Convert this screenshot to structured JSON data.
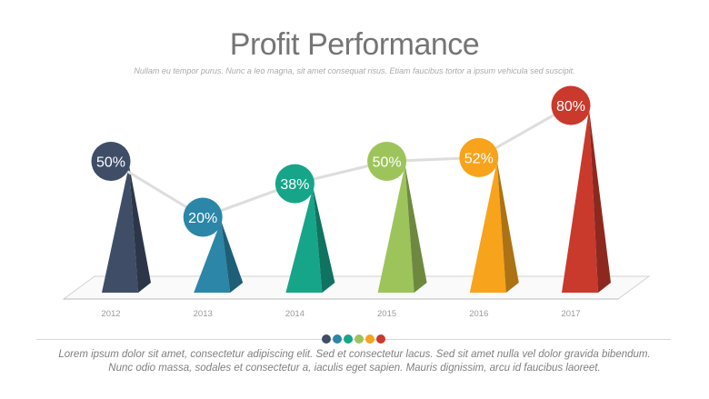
{
  "header": {
    "title": "Profit Performance",
    "subtitle": "Nullam eu tempor purus. Nunc a leo magna, sit amet consequat risus. Etiam faucibus tortor a ipsum vehicula sed suscipit."
  },
  "chart_data": {
    "type": "line",
    "title": "Profit Performance",
    "categories": [
      "2012",
      "2013",
      "2014",
      "2015",
      "2016",
      "2017"
    ],
    "values": [
      50,
      20,
      38,
      50,
      52,
      80
    ],
    "data_labels": [
      "50%",
      "20%",
      "38%",
      "50%",
      "52%",
      "80%"
    ],
    "colors": [
      "#3f4d67",
      "#2b86a8",
      "#16a589",
      "#9dc45a",
      "#f7a31c",
      "#c9392c"
    ],
    "line_color": "#dddddd",
    "grid": false,
    "legend": "none"
  },
  "pager": {
    "dots": [
      "#3f4d67",
      "#2b86a8",
      "#16a589",
      "#9dc45a",
      "#f7a31c",
      "#c9392c"
    ]
  },
  "footer": {
    "line1": "Lorem ipsum dolor sit amet, consectetur adipiscing elit. Sed et consectetur lacus. Sed sit amet nulla vel dolor gravida bibendum.",
    "line2": "Nunc odio massa, sodales et consectetur a, iaculis eget sapien. Mauris dignissim, arcu id faucibus laoreet."
  }
}
